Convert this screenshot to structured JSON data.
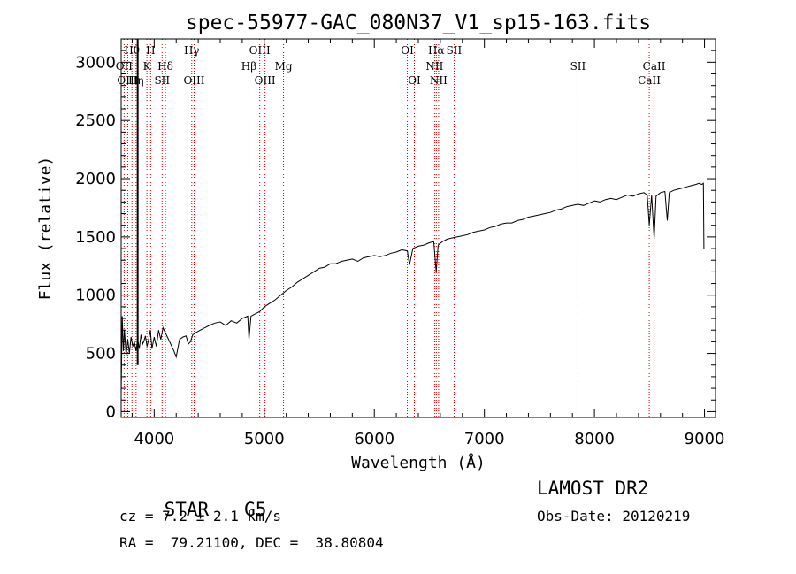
{
  "chart_data": {
    "type": "line",
    "title": "spec-55977-GAC_080N37_V1_sp15-163.fits",
    "xlabel": "Wavelength (Å)",
    "ylabel": "Flux (relative)",
    "xlim": [
      3700,
      9100
    ],
    "ylim": [
      -50,
      3200
    ],
    "x_ticks": [
      4000,
      5000,
      6000,
      7000,
      8000,
      9000
    ],
    "y_ticks": [
      0,
      500,
      1000,
      1500,
      2000,
      2500,
      3000
    ],
    "grid": false,
    "line_color": "#000000",
    "marker_color": "#cc0000",
    "series": [
      {
        "x": [
          3700,
          3710,
          3720,
          3730,
          3745,
          3760,
          3775,
          3790,
          3805,
          3820,
          3835,
          3850,
          3865,
          3880,
          3895,
          3905,
          3920,
          3935,
          3950,
          3965,
          3980,
          4000,
          4020,
          4040,
          4060,
          4080,
          4100,
          4120,
          4140,
          4160,
          4180,
          4200,
          4230,
          4260,
          4290,
          4310,
          4330,
          4350,
          4380,
          4420,
          4460,
          4500,
          4550,
          4600,
          4650,
          4700,
          4750,
          4800,
          4850,
          4861,
          4880,
          4920,
          4960,
          5000,
          5050,
          5100,
          5150,
          5200,
          5250,
          5300,
          5350,
          5400,
          5450,
          5500,
          5550,
          5600,
          5650,
          5700,
          5750,
          5800,
          5850,
          5900,
          5950,
          6000,
          6050,
          6100,
          6150,
          6200,
          6250,
          6300,
          6320,
          6350,
          6400,
          6450,
          6500,
          6540,
          6562,
          6580,
          6620,
          6660,
          6700,
          6750,
          6800,
          6850,
          6900,
          6950,
          7000,
          7050,
          7100,
          7150,
          7200,
          7250,
          7300,
          7350,
          7400,
          7450,
          7500,
          7550,
          7600,
          7650,
          7700,
          7750,
          7800,
          7850,
          7900,
          7950,
          8000,
          8050,
          8100,
          8150,
          8200,
          8250,
          8300,
          8350,
          8400,
          8450,
          8480,
          8498,
          8520,
          8542,
          8560,
          8600,
          8640,
          8662,
          8680,
          8720,
          8760,
          8800,
          8840,
          8880,
          8920,
          8950,
          8975,
          8990,
          8995
        ],
        "y": [
          150,
          820,
          520,
          700,
          480,
          620,
          500,
          640,
          560,
          600,
          520,
          620,
          540,
          660,
          580,
          600,
          650,
          560,
          620,
          700,
          540,
          640,
          560,
          700,
          620,
          720,
          680,
          640,
          600,
          560,
          520,
          470,
          620,
          640,
          650,
          580,
          600,
          660,
          680,
          700,
          720,
          740,
          760,
          770,
          740,
          780,
          760,
          800,
          820,
          620,
          820,
          840,
          860,
          900,
          930,
          960,
          1000,
          1040,
          1070,
          1110,
          1140,
          1170,
          1200,
          1230,
          1240,
          1270,
          1270,
          1290,
          1300,
          1310,
          1290,
          1320,
          1330,
          1340,
          1330,
          1340,
          1360,
          1370,
          1390,
          1380,
          1260,
          1400,
          1420,
          1430,
          1450,
          1460,
          1200,
          1430,
          1460,
          1480,
          1490,
          1500,
          1510,
          1520,
          1540,
          1550,
          1560,
          1580,
          1590,
          1610,
          1620,
          1620,
          1640,
          1650,
          1670,
          1680,
          1690,
          1700,
          1710,
          1730,
          1740,
          1760,
          1770,
          1780,
          1770,
          1790,
          1810,
          1800,
          1820,
          1830,
          1820,
          1840,
          1860,
          1850,
          1870,
          1880,
          1860,
          1600,
          1860,
          1480,
          1850,
          1880,
          1890,
          1640,
          1880,
          1900,
          1910,
          1920,
          1930,
          1940,
          1950,
          1960,
          1950,
          1960,
          1400
        ]
      }
    ],
    "spike": {
      "x": 3850,
      "y": 3200
    },
    "lines": [
      {
        "label": "Hθ",
        "x": 3798,
        "row": 1
      },
      {
        "label": "OII",
        "x": 3727,
        "row": 2
      },
      {
        "label": "OIII",
        "x": 3760,
        "row": 3
      },
      {
        "label": "Hη",
        "x": 3835,
        "row": 3
      },
      {
        "label": "H",
        "x": 3968,
        "row": 1
      },
      {
        "label": "K",
        "x": 3934,
        "row": 2
      },
      {
        "label": "SII",
        "x": 4072,
        "row": 3
      },
      {
        "label": "Hδ",
        "x": 4102,
        "row": 2
      },
      {
        "label": "Hγ",
        "x": 4341,
        "row": 1
      },
      {
        "label": "OIII",
        "x": 4363,
        "row": 3
      },
      {
        "label": "OIII",
        "x": 4959,
        "row": 1
      },
      {
        "label": "Hβ",
        "x": 4861,
        "row": 2
      },
      {
        "label": "OIII",
        "x": 5007,
        "row": 3
      },
      {
        "label": "Mg",
        "x": 5175,
        "row": 2
      },
      {
        "label": "OI",
        "x": 6300,
        "row": 1
      },
      {
        "label": "OI",
        "x": 6364,
        "row": 3
      },
      {
        "label": "Hα",
        "x": 6563,
        "row": 1
      },
      {
        "label": "NII",
        "x": 6548,
        "row": 2
      },
      {
        "label": "NII",
        "x": 6584,
        "row": 3
      },
      {
        "label": "SII",
        "x": 6725,
        "row": 1
      },
      {
        "label": "SII",
        "x": 7850,
        "row": 2
      },
      {
        "label": "CaII",
        "x": 8542,
        "row": 2
      },
      {
        "label": "CaII",
        "x": 8498,
        "row": 3
      }
    ]
  },
  "footer": {
    "class_label": "STAR",
    "subclass": "G5",
    "survey": "LAMOST DR2",
    "cz": "cz = 7.2 ± 2.1 km/s",
    "obs_date": "Obs-Date: 20120219",
    "radec": "RA =  79.21100, DEC =  38.80804"
  }
}
